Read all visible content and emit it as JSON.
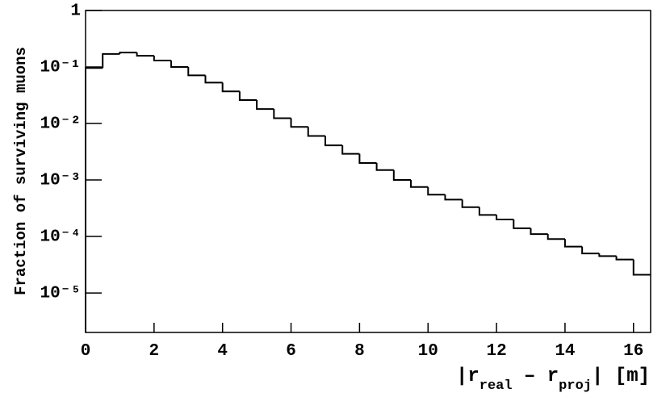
{
  "chart_data": {
    "type": "histogram",
    "ylabel": "Fraction of surviving muons",
    "xlabel": [
      "|r",
      "real",
      " – r",
      "proj",
      "|  [m]"
    ],
    "bins": [
      0,
      0.5,
      1,
      1.5,
      2,
      2.5,
      3,
      3.5,
      4,
      4.5,
      5,
      5.5,
      6,
      6.5,
      7,
      7.5,
      8,
      8.5,
      9,
      9.5,
      10,
      10.5,
      11,
      11.5,
      12,
      12.5,
      13,
      13.5,
      14,
      14.5,
      15,
      15.5,
      16,
      16.5
    ],
    "values": [
      0.096,
      0.17,
      0.18,
      0.158,
      0.13,
      0.1,
      0.071,
      0.053,
      0.037,
      0.026,
      0.018,
      0.0124,
      0.0087,
      0.006,
      0.0041,
      0.0029,
      0.002,
      0.0015,
      0.001,
      0.00075,
      0.00055,
      0.00045,
      0.00033,
      0.00024,
      0.0002,
      0.00014,
      0.00011,
      9e-05,
      6.6e-05,
      5e-05,
      4.5e-05,
      3.9e-05,
      2.1e-05
    ],
    "color": "#000000",
    "xlim": [
      0,
      16.5
    ],
    "xticks": [
      0,
      2,
      4,
      6,
      8,
      10,
      12,
      14,
      16
    ],
    "ylim": [
      2e-06,
      1
    ],
    "ylog": true,
    "yticks": [
      {
        "value": 1,
        "label": "1"
      },
      {
        "value": 0.1,
        "label": "10⁻¹"
      },
      {
        "value": 0.01,
        "label": "10⁻²"
      },
      {
        "value": 0.001,
        "label": "10⁻³"
      },
      {
        "value": 0.0001,
        "label": "10⁻⁴"
      },
      {
        "value": 1e-05,
        "label": "10⁻⁵"
      }
    ]
  }
}
